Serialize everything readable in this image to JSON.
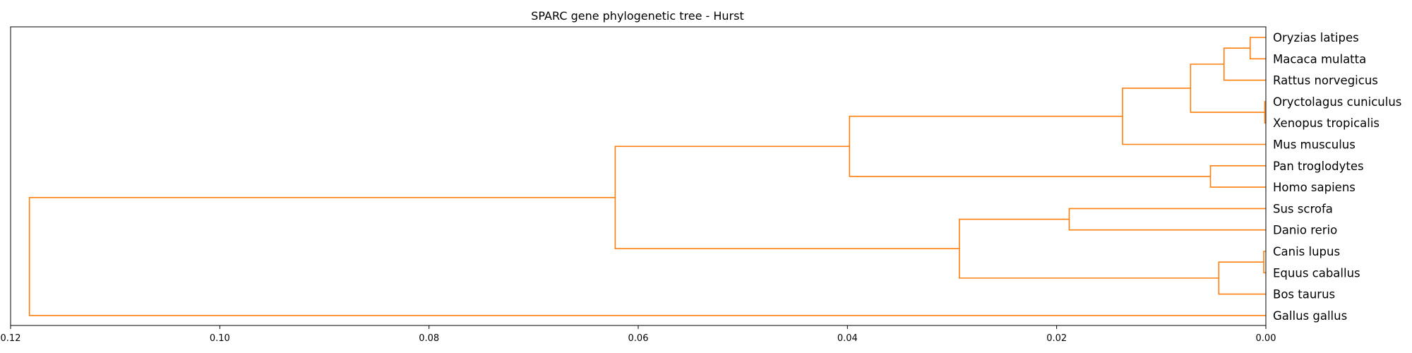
{
  "chart_data": {
    "type": "dendrogram",
    "orientation": "left",
    "title": "SPARC gene phylogenetic tree - Hurst",
    "xlabel": "",
    "ylabel": "",
    "xlim": [
      0.12,
      0.0
    ],
    "x_ticks": [
      "0.12",
      "0.10",
      "0.08",
      "0.06",
      "0.04",
      "0.02",
      "0.00"
    ],
    "x_tick_values": [
      0.12,
      0.1,
      0.08,
      0.06,
      0.04,
      0.02,
      0.0
    ],
    "grid": false,
    "link_color": "#ff7f0e",
    "leaves": [
      "Oryzias latipes",
      "Macaca mulatta",
      "Rattus norvegicus",
      "Oryctolagus cuniculus",
      "Xenopus tropicalis",
      "Mus musculus",
      "Pan troglodytes",
      "Homo sapiens",
      "Sus scrofa",
      "Danio rerio",
      "Canis lupus",
      "Equus caballus",
      "Bos taurus",
      "Gallus gallus"
    ],
    "merges": [
      {
        "id": "n1",
        "children": [
          "Oryzias latipes",
          "Macaca mulatta"
        ],
        "height": 0.0015
      },
      {
        "id": "n2",
        "children": [
          "n1",
          "Rattus norvegicus"
        ],
        "height": 0.004
      },
      {
        "id": "n3",
        "children": [
          "Oryctolagus cuniculus",
          "Xenopus tropicalis"
        ],
        "height": 0.0001
      },
      {
        "id": "n4",
        "children": [
          "n2",
          "n3"
        ],
        "height": 0.0072
      },
      {
        "id": "n5",
        "children": [
          "n4",
          "Mus musculus"
        ],
        "height": 0.0137
      },
      {
        "id": "n6",
        "children": [
          "Pan troglodytes",
          "Homo sapiens"
        ],
        "height": 0.0053
      },
      {
        "id": "n7",
        "children": [
          "n5",
          "n6"
        ],
        "height": 0.0398
      },
      {
        "id": "n8",
        "children": [
          "Sus scrofa",
          "Danio rerio"
        ],
        "height": 0.0188
      },
      {
        "id": "n9",
        "children": [
          "Canis lupus",
          "Equus caballus"
        ],
        "height": 0.0002
      },
      {
        "id": "n10",
        "children": [
          "n9",
          "Bos taurus"
        ],
        "height": 0.0045
      },
      {
        "id": "n11",
        "children": [
          "n8",
          "n10"
        ],
        "height": 0.0293
      },
      {
        "id": "n12",
        "children": [
          "n7",
          "n11"
        ],
        "height": 0.0622
      },
      {
        "id": "n13",
        "children": [
          "n12",
          "Gallus gallus"
        ],
        "height": 0.1182
      }
    ]
  }
}
